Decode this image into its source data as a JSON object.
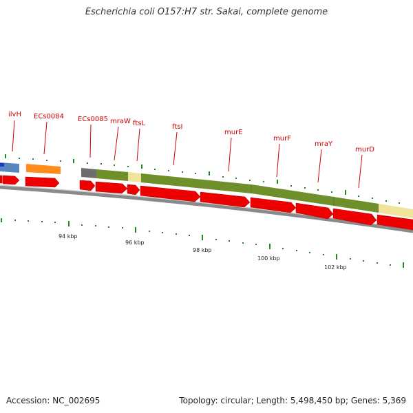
{
  "title": "Escherichia coli O157:H7 str. Sakai, complete genome",
  "footer": {
    "accession": "Accession: NC_002695",
    "info": "Topology: circular; Length: 5,498,450 bp; Genes: 5,369"
  },
  "gene_labels": [
    {
      "id": "ilvH",
      "text": "ilvH"
    },
    {
      "id": "ECs0084",
      "text": "ECs0084"
    },
    {
      "id": "ECs0085",
      "text": "ECs0085"
    },
    {
      "id": "mraW",
      "text": "mraW"
    },
    {
      "id": "ftsL",
      "text": "ftsL"
    },
    {
      "id": "ftsI",
      "text": "ftsI"
    },
    {
      "id": "murE",
      "text": "murE"
    },
    {
      "id": "murF",
      "text": "murF"
    },
    {
      "id": "mraY",
      "text": "mraY"
    },
    {
      "id": "murD",
      "text": "murD"
    }
  ],
  "scale_labels": [
    {
      "id": "kbp94",
      "text": "94 kbp"
    },
    {
      "id": "kbp96",
      "text": "96 kbp"
    },
    {
      "id": "kbp98",
      "text": "98 kbp"
    },
    {
      "id": "kbp100",
      "text": "100 kbp"
    },
    {
      "id": "kbp102",
      "text": "102 kbp"
    }
  ],
  "colors": {
    "red_arrow": "#ee0000",
    "olive": "#6f8f2a",
    "yellow": "#f0e39a",
    "orange": "#ff8c1a",
    "blue": "#5a86c0",
    "grey": "#6d6d6d",
    "label": "#cc0000",
    "tick": "#1a8a1a"
  }
}
